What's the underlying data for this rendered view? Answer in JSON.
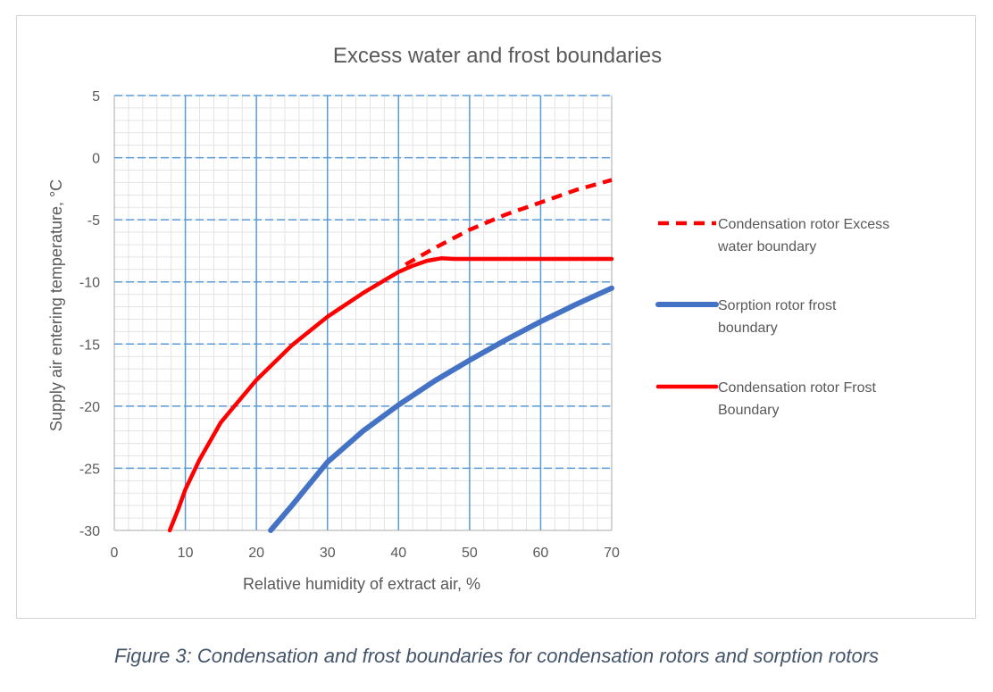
{
  "caption": "Figure 3: Condensation and frost boundaries for condensation rotors and sorption rotors",
  "chart_data": {
    "type": "line",
    "title": "Excess water and frost boundaries",
    "xlabel": "Relative humidity of extract air, %",
    "ylabel": "Supply air entering temperature, °C",
    "xlim": [
      0,
      70
    ],
    "ylim": [
      -30,
      5
    ],
    "xticks": [
      0,
      10,
      20,
      30,
      40,
      50,
      60,
      70
    ],
    "yticks": [
      5,
      0,
      -5,
      -10,
      -15,
      -20,
      -25,
      -30
    ],
    "x_minor_step": 2,
    "y_minor_step": 1,
    "grid": true,
    "legend_position": "right",
    "series": [
      {
        "name": "Condensation rotor Excess water boundary",
        "color": "#ff0000",
        "dash": true,
        "x": [
          41,
          45,
          50,
          55,
          60,
          65,
          70
        ],
        "y": [
          -8.6,
          -7.3,
          -5.8,
          -4.6,
          -3.6,
          -2.6,
          -1.8
        ]
      },
      {
        "name": "Sorption rotor frost boundary",
        "color": "#4472c4",
        "dash": false,
        "x": [
          22,
          25,
          30,
          35,
          40,
          45,
          50,
          55,
          60,
          65,
          70
        ],
        "y": [
          -30,
          -28,
          -24.5,
          -22,
          -19.9,
          -18,
          -16.3,
          -14.7,
          -13.2,
          -11.8,
          -10.5
        ]
      },
      {
        "name": "Condensation rotor Frost Boundary",
        "color": "#ff0000",
        "dash": false,
        "x": [
          7.8,
          9,
          10,
          12,
          15,
          20,
          25,
          30,
          35,
          40,
          42,
          44,
          46,
          48,
          50,
          55,
          60,
          65,
          70
        ],
        "y": [
          -30,
          -28.3,
          -26.7,
          -24.3,
          -21.3,
          -17.9,
          -15.1,
          -12.8,
          -10.9,
          -9.2,
          -8.7,
          -8.3,
          -8.1,
          -8.15,
          -8.15,
          -8.15,
          -8.15,
          -8.15,
          -8.15
        ]
      }
    ]
  }
}
